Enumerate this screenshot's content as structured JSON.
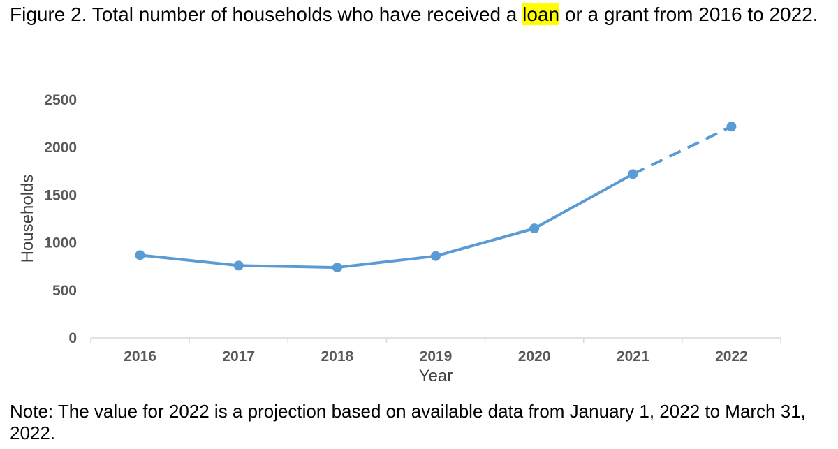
{
  "figure": {
    "title_before": "Figure 2. Total number of households who have received a ",
    "title_highlight": "loan",
    "title_after": " or a grant from 2016 to 2022.",
    "note": "Note: The value for 2022 is a projection based on available data from January 1, 2022 to March 31, 2022."
  },
  "chart_data": {
    "type": "line",
    "categories": [
      "2016",
      "2017",
      "2018",
      "2019",
      "2020",
      "2021",
      "2022"
    ],
    "series": [
      {
        "values": [
          870,
          760,
          740,
          860,
          1150,
          1720,
          2220
        ],
        "projected_from_index": 5
      }
    ],
    "xlabel": "Year",
    "ylabel": "Households",
    "ylim": [
      0,
      2500
    ],
    "yticks": [
      0,
      500,
      1000,
      1500,
      2000,
      2500
    ],
    "grid": false,
    "line_color": "#5b9bd5",
    "axis_color": "#d9d9d9",
    "last_segment_style": "dashed"
  }
}
